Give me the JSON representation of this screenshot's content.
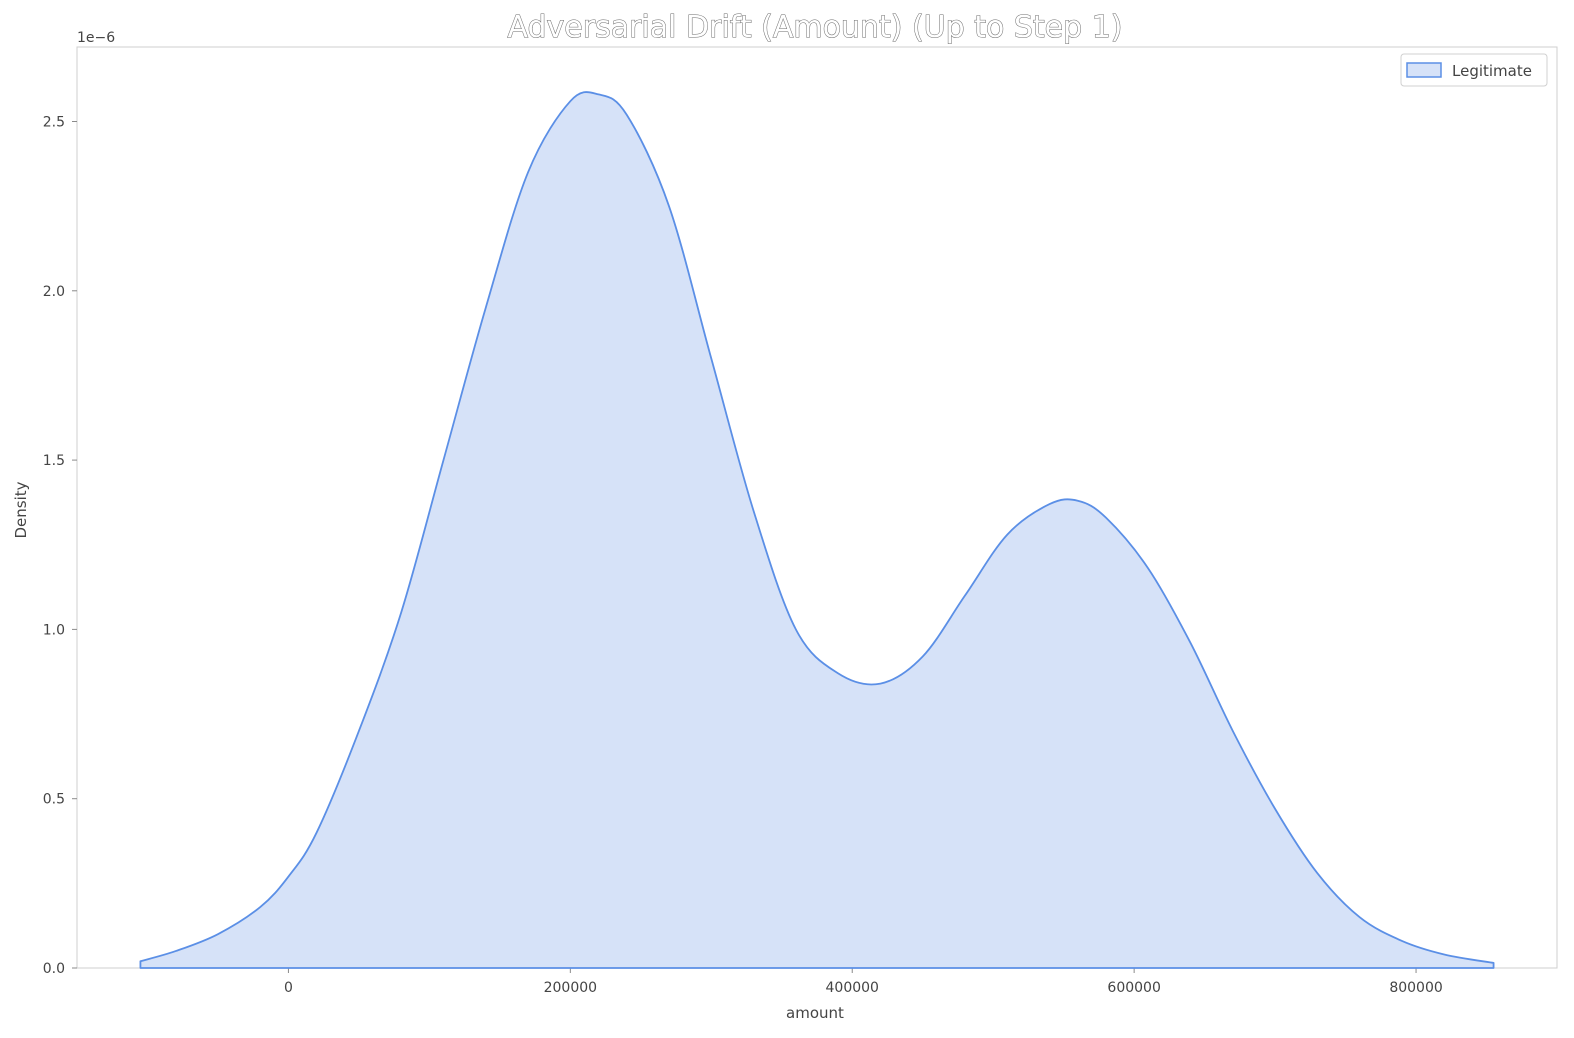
{
  "chart_data": {
    "type": "area",
    "title": "Adversarial Drift (Amount) (Up to Step 1)",
    "xlabel": "amount",
    "ylabel": "Density",
    "y_offset_label": "1e−6",
    "xlim": [
      -150000,
      900000
    ],
    "ylim": [
      0,
      2.72
    ],
    "x_ticks": [
      0,
      200000,
      400000,
      600000,
      800000
    ],
    "x_tick_labels": [
      "0",
      "200000",
      "400000",
      "600000",
      "800000"
    ],
    "y_ticks": [
      0.0,
      0.5,
      1.0,
      1.5,
      2.0,
      2.5
    ],
    "y_tick_labels": [
      "0.0",
      "0.5",
      "1.0",
      "1.5",
      "2.0",
      "2.5"
    ],
    "grid": false,
    "legend_position": "top-right",
    "series": [
      {
        "name": "Legitimate",
        "color": "#5b8fe6",
        "fill": "#d6e2f8",
        "x": [
          -105000,
          -80000,
          -50000,
          -20000,
          0,
          20000,
          50000,
          80000,
          110000,
          140000,
          170000,
          200000,
          220000,
          240000,
          270000,
          300000,
          330000,
          360000,
          390000,
          420000,
          450000,
          480000,
          510000,
          540000,
          560000,
          580000,
          610000,
          640000,
          670000,
          700000,
          730000,
          760000,
          790000,
          820000,
          855000
        ],
        "y": [
          0.02,
          0.05,
          0.1,
          0.18,
          0.27,
          0.4,
          0.7,
          1.05,
          1.5,
          1.95,
          2.35,
          2.56,
          2.58,
          2.52,
          2.25,
          1.8,
          1.35,
          1.0,
          0.87,
          0.84,
          0.92,
          1.1,
          1.28,
          1.37,
          1.38,
          1.33,
          1.18,
          0.96,
          0.7,
          0.47,
          0.28,
          0.15,
          0.08,
          0.04,
          0.015
        ]
      }
    ]
  }
}
